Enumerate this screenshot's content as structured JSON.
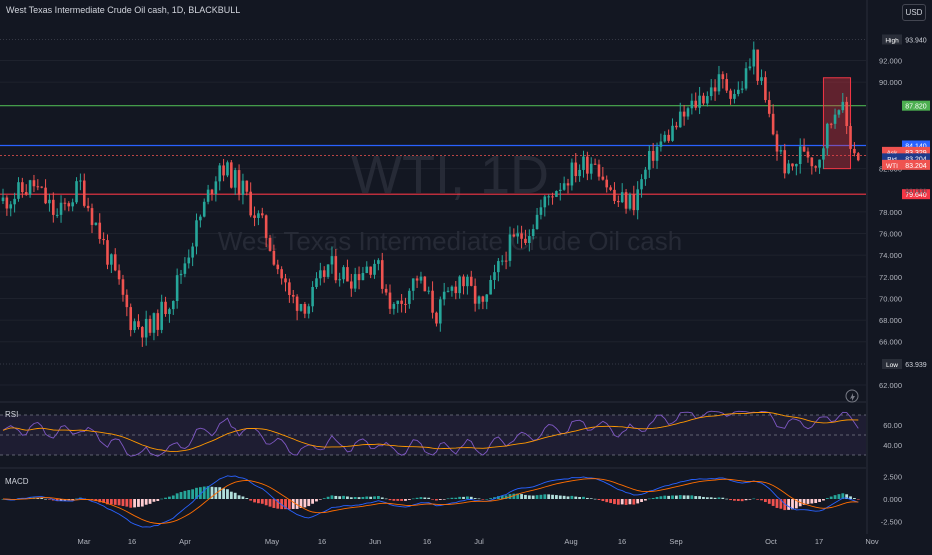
{
  "header": {
    "symbol_title": "West Texas Intermediate Crude Oil cash, 1D, BLACKBULL",
    "currency_label": "USD"
  },
  "watermark": {
    "symbol": "WTI, 1D",
    "name": "West Texas Intermediate Crude Oil cash"
  },
  "price_labels": {
    "high_tag": "High",
    "high_value": "93.940",
    "low_tag": "Low",
    "low_value": "63.939",
    "green_line": "87.820",
    "blue_line": "84.140",
    "ask_tag": "Ask",
    "ask_value": "83.329",
    "bid_tag": "Bid",
    "bid_value": "83.204",
    "wti_tag": "WTI",
    "wti_value": "83.204",
    "red_line_value": "79.640",
    "faint_value": "80.000"
  },
  "rsi_label": "RSI",
  "macd_label": "MACD",
  "colors": {
    "background": "#131722",
    "up": "#26a69a",
    "down": "#ef5350",
    "green_line": "#4caf50",
    "blue_line": "#2962ff",
    "red_line": "#f23645",
    "rsi_line": "#7e57c2",
    "rsi_ma": "#ff9800",
    "macd_line": "#2962ff",
    "signal_line": "#ff6d00"
  },
  "chart_data": {
    "type": "candlestick",
    "ylim": [
      62,
      95
    ],
    "y_ticks": [
      "92.000",
      "90.000",
      "82.000",
      "78.000",
      "76.000",
      "74.000",
      "72.000",
      "70.000",
      "68.000",
      "66.000",
      "62.000"
    ],
    "x_ticks": [
      "Mar",
      "16",
      "Apr",
      "May",
      "16",
      "Jun",
      "16",
      "Jul",
      "Aug",
      "16",
      "Sep",
      "Oct",
      "17",
      "Nov"
    ],
    "rsi_ticks": [
      "60.00",
      "40.00"
    ],
    "rsi_bands": [
      70,
      50,
      30
    ],
    "macd_ticks": [
      "2.500",
      "0.000",
      "-2.500"
    ],
    "horizontal_levels": [
      {
        "name": "resistance",
        "value": 87.82,
        "color": "#4caf50"
      },
      {
        "name": "pivot",
        "value": 84.14,
        "color": "#2962ff"
      },
      {
        "name": "support",
        "value": 79.64,
        "color": "#f23645"
      }
    ],
    "highlight_zone": {
      "from_value": 82.0,
      "to_value": 90.4
    },
    "anchors": [
      {
        "t": 0,
        "v": 79.0
      },
      {
        "t": 8,
        "v": 80.5
      },
      {
        "t": 14,
        "v": 77.5
      },
      {
        "t": 20,
        "v": 80.5
      },
      {
        "t": 26,
        "v": 75.0
      },
      {
        "t": 33,
        "v": 68.0
      },
      {
        "t": 38,
        "v": 67.0
      },
      {
        "t": 44,
        "v": 70.5
      },
      {
        "t": 50,
        "v": 76.5
      },
      {
        "t": 56,
        "v": 82.5
      },
      {
        "t": 62,
        "v": 80.0
      },
      {
        "t": 68,
        "v": 76.0
      },
      {
        "t": 74,
        "v": 70.0
      },
      {
        "t": 79,
        "v": 69.5
      },
      {
        "t": 84,
        "v": 73.0
      },
      {
        "t": 90,
        "v": 72.0
      },
      {
        "t": 96,
        "v": 73.5
      },
      {
        "t": 101,
        "v": 69.0
      },
      {
        "t": 107,
        "v": 72.0
      },
      {
        "t": 112,
        "v": 68.5
      },
      {
        "t": 118,
        "v": 72.0
      },
      {
        "t": 124,
        "v": 69.0
      },
      {
        "t": 130,
        "v": 74.5
      },
      {
        "t": 136,
        "v": 76.5
      },
      {
        "t": 142,
        "v": 80.0
      },
      {
        "t": 148,
        "v": 82.0
      },
      {
        "t": 153,
        "v": 83.0
      },
      {
        "t": 158,
        "v": 79.0
      },
      {
        "t": 163,
        "v": 79.0
      },
      {
        "t": 168,
        "v": 83.5
      },
      {
        "t": 174,
        "v": 86.0
      },
      {
        "t": 180,
        "v": 88.5
      },
      {
        "t": 185,
        "v": 90.0
      },
      {
        "t": 190,
        "v": 89.0
      },
      {
        "t": 194,
        "v": 92.5
      },
      {
        "t": 197,
        "v": 88.0
      },
      {
        "t": 200,
        "v": 84.0
      },
      {
        "t": 203,
        "v": 81.5
      },
      {
        "t": 207,
        "v": 84.0
      },
      {
        "t": 210,
        "v": 82.5
      },
      {
        "t": 213,
        "v": 85.5
      },
      {
        "t": 216,
        "v": 88.5
      },
      {
        "t": 219,
        "v": 84.5
      },
      {
        "t": 221,
        "v": 83.2
      }
    ],
    "price_at_rsi_70": 90.0
  }
}
